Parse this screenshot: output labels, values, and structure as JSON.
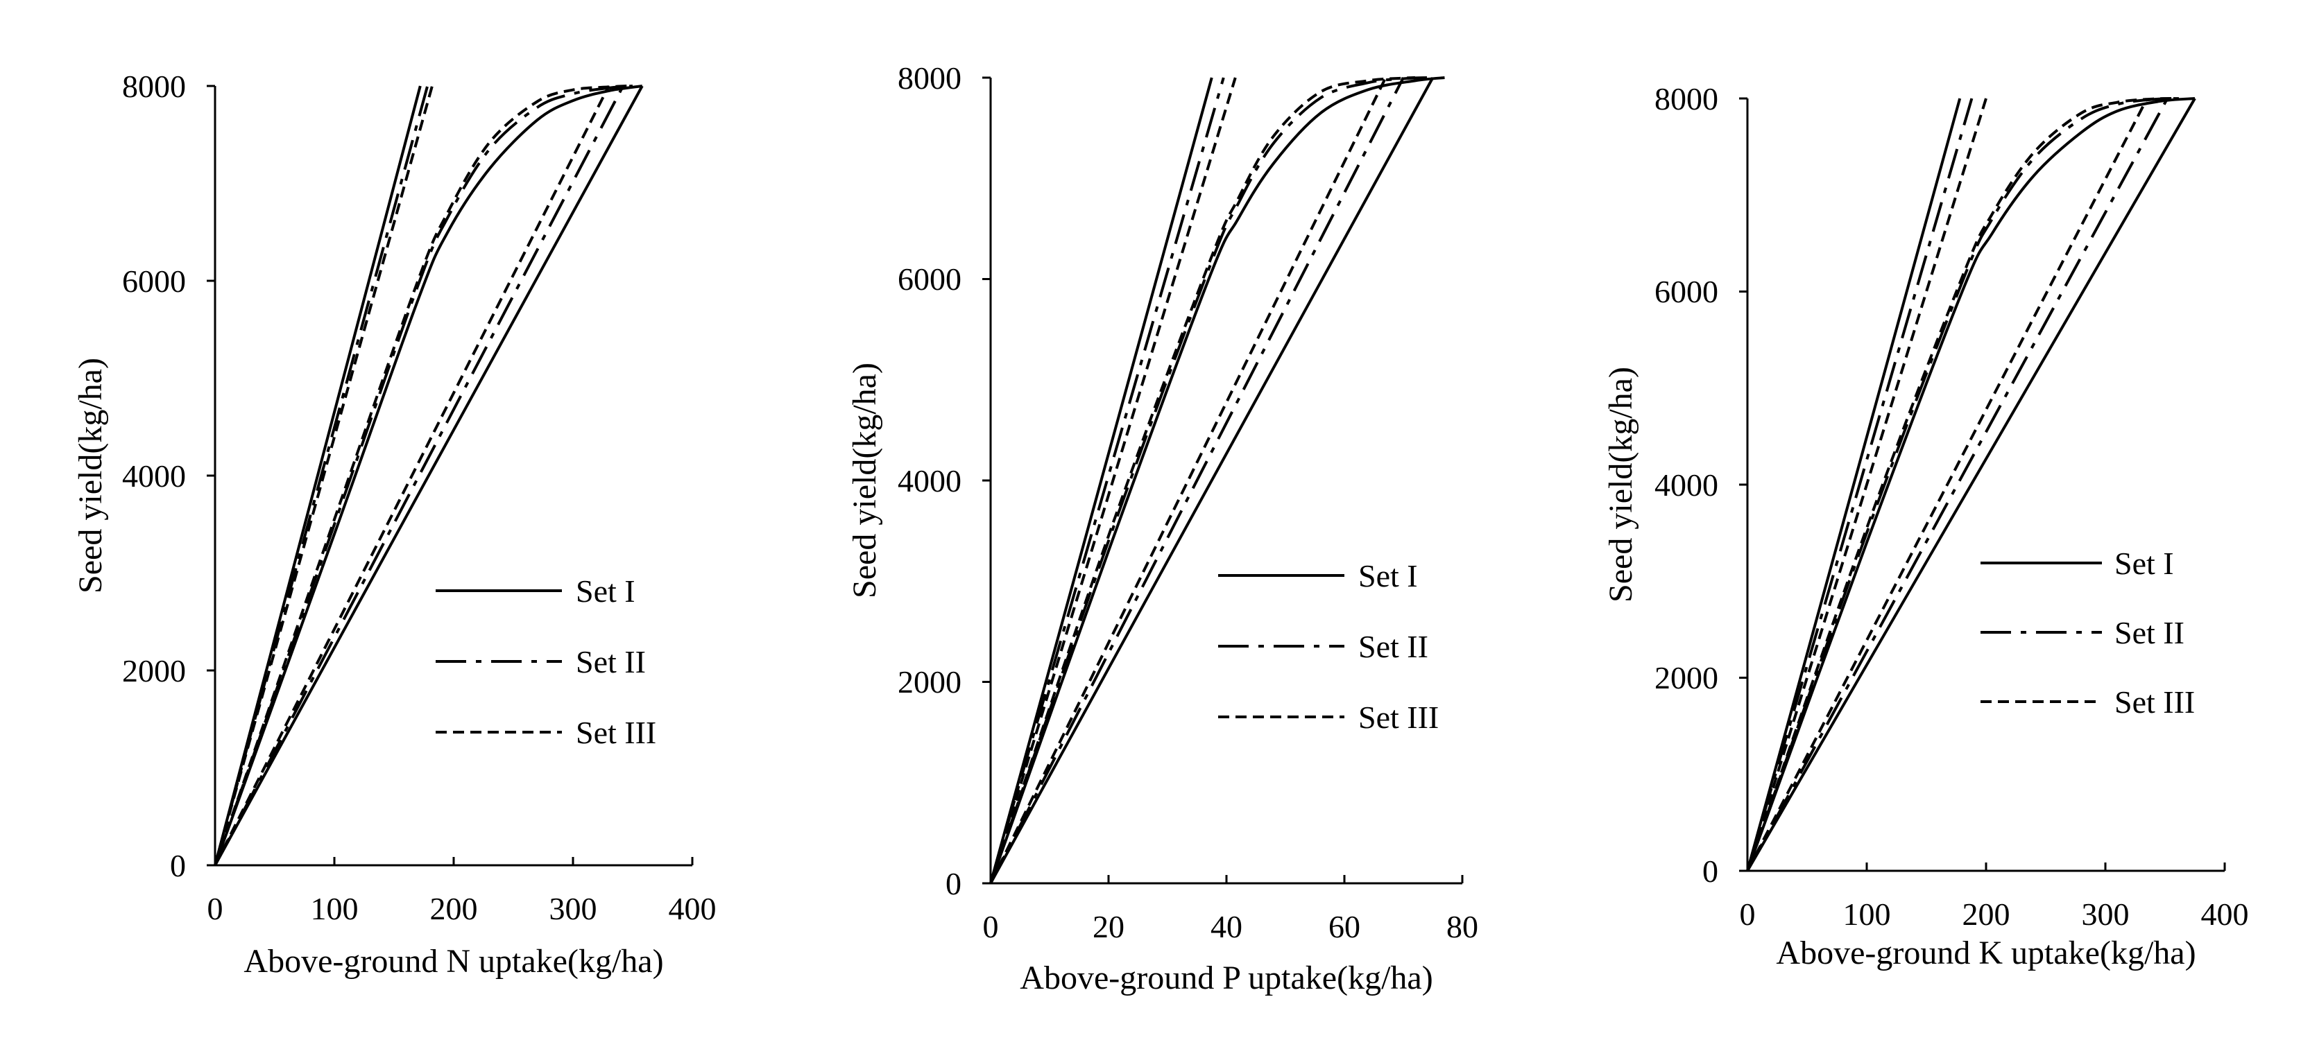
{
  "chart_data": [
    {
      "type": "line",
      "xlabel": "Above-ground N uptake(kg/ha)",
      "ylabel": "Seed yield(kg/ha)",
      "xlim": [
        0,
        400
      ],
      "ylim": [
        0,
        8000
      ],
      "xticks": [
        "0",
        "100",
        "200",
        "300",
        "400"
      ],
      "yticks": [
        "0",
        "2000",
        "4000",
        "6000",
        "8000"
      ],
      "legend": [
        "Set I",
        "Set II",
        "Set III"
      ],
      "series": [
        {
          "name": "Set I",
          "style": "solid",
          "groups": [
            {
              "role": "min",
              "x": [
                0,
                172
              ],
              "y": [
                0,
                8000
              ]
            },
            {
              "role": "balanced",
              "x": [
                0,
                100,
                170,
                195,
                230,
                270,
                300,
                330,
                358
              ],
              "y": [
                0,
                3400,
                5800,
                6500,
                7150,
                7650,
                7850,
                7950,
                8000
              ]
            },
            {
              "role": "max",
              "x": [
                0,
                358
              ],
              "y": [
                0,
                8000
              ]
            }
          ]
        },
        {
          "name": "Set II",
          "style": "dashdot",
          "groups": [
            {
              "role": "min",
              "x": [
                0,
                178
              ],
              "y": [
                0,
                8000
              ]
            },
            {
              "role": "balanced",
              "x": [
                0,
                100,
                170,
                195,
                230,
                270,
                300,
                330,
                350
              ],
              "y": [
                0,
                3500,
                5950,
                6650,
                7350,
                7780,
                7920,
                7980,
                8000
              ]
            },
            {
              "role": "max",
              "x": [
                0,
                342
              ],
              "y": [
                0,
                8000
              ]
            }
          ]
        },
        {
          "name": "Set III",
          "style": "dashed",
          "groups": [
            {
              "role": "min",
              "x": [
                0,
                182
              ],
              "y": [
                0,
                8000
              ]
            },
            {
              "role": "balanced",
              "x": [
                0,
                100,
                170,
                195,
                230,
                270,
                300,
                330,
                345
              ],
              "y": [
                0,
                3550,
                6000,
                6700,
                7420,
                7840,
                7960,
                7990,
                8000
              ]
            },
            {
              "role": "max",
              "x": [
                0,
                330
              ],
              "y": [
                0,
                8000
              ]
            }
          ]
        }
      ]
    },
    {
      "type": "line",
      "xlabel": "Above-ground P uptake(kg/ha)",
      "ylabel": "Seed yield(kg/ha)",
      "xlim": [
        0,
        80
      ],
      "ylim": [
        0,
        8000
      ],
      "xticks": [
        "0",
        "20",
        "40",
        "60",
        "80"
      ],
      "yticks": [
        "0",
        "2000",
        "4000",
        "6000",
        "8000"
      ],
      "legend": [
        "Set I",
        "Set II",
        "Set III"
      ],
      "series": [
        {
          "name": "Set I",
          "style": "solid",
          "groups": [
            {
              "role": "min",
              "x": [
                0,
                37.5
              ],
              "y": [
                0,
                8000
              ]
            },
            {
              "role": "balanced",
              "x": [
                0,
                20,
                37,
                42,
                48,
                56,
                64,
                72,
                77
              ],
              "y": [
                0,
                3300,
                6000,
                6600,
                7150,
                7650,
                7880,
                7970,
                8000
              ]
            },
            {
              "role": "max",
              "x": [
                0,
                75
              ],
              "y": [
                0,
                8000
              ]
            }
          ]
        },
        {
          "name": "Set II",
          "style": "dashdot",
          "groups": [
            {
              "role": "min",
              "x": [
                0,
                39.5
              ],
              "y": [
                0,
                8000
              ]
            },
            {
              "role": "balanced",
              "x": [
                0,
                20,
                37,
                42,
                48,
                56,
                64,
                70,
                74
              ],
              "y": [
                0,
                3400,
                6100,
                6750,
                7350,
                7800,
                7950,
                7990,
                8000
              ]
            },
            {
              "role": "max",
              "x": [
                0,
                70
              ],
              "y": [
                0,
                8000
              ]
            }
          ]
        },
        {
          "name": "Set III",
          "style": "dashed",
          "groups": [
            {
              "role": "min",
              "x": [
                0,
                41.5
              ],
              "y": [
                0,
                8000
              ]
            },
            {
              "role": "balanced",
              "x": [
                0,
                20,
                37,
                42,
                48,
                56,
                64,
                70,
                72
              ],
              "y": [
                0,
                3450,
                6150,
                6800,
                7420,
                7860,
                7970,
                7995,
                8000
              ]
            },
            {
              "role": "max",
              "x": [
                0,
                67
              ],
              "y": [
                0,
                8000
              ]
            }
          ]
        }
      ]
    },
    {
      "type": "line",
      "xlabel": "Above-ground K uptake(kg/ha)",
      "ylabel": "Seed yield(kg/ha)",
      "xlim": [
        0,
        400
      ],
      "ylim": [
        0,
        8000
      ],
      "xticks": [
        "0",
        "100",
        "200",
        "300",
        "400"
      ],
      "yticks": [
        "0",
        "2000",
        "4000",
        "6000",
        "8000"
      ],
      "legend": [
        "Set I",
        "Set II",
        "Set III"
      ],
      "series": [
        {
          "name": "Set I",
          "style": "solid",
          "groups": [
            {
              "role": "min",
              "x": [
                0,
                178
              ],
              "y": [
                0,
                8000
              ]
            },
            {
              "role": "balanced",
              "x": [
                0,
                100,
                180,
                205,
                240,
                280,
                310,
                345,
                375
              ],
              "y": [
                0,
                3400,
                6000,
                6600,
                7200,
                7650,
                7870,
                7970,
                8000
              ]
            },
            {
              "role": "max",
              "x": [
                0,
                375
              ],
              "y": [
                0,
                8000
              ]
            }
          ]
        },
        {
          "name": "Set II",
          "style": "dashdot",
          "groups": [
            {
              "role": "min",
              "x": [
                0,
                188
              ],
              "y": [
                0,
                8000
              ]
            },
            {
              "role": "balanced",
              "x": [
                0,
                100,
                180,
                205,
                240,
                280,
                310,
                340,
                365
              ],
              "y": [
                0,
                3500,
                6100,
                6750,
                7380,
                7790,
                7940,
                7990,
                8000
              ]
            },
            {
              "role": "max",
              "x": [
                0,
                352
              ],
              "y": [
                0,
                8000
              ]
            }
          ]
        },
        {
          "name": "Set III",
          "style": "dashed",
          "groups": [
            {
              "role": "min",
              "x": [
                0,
                200
              ],
              "y": [
                0,
                8000
              ]
            },
            {
              "role": "balanced",
              "x": [
                0,
                100,
                180,
                205,
                240,
                280,
                310,
                340,
                360
              ],
              "y": [
                0,
                3550,
                6150,
                6800,
                7440,
                7850,
                7960,
                7995,
                8000
              ]
            },
            {
              "role": "max",
              "x": [
                0,
                335
              ],
              "y": [
                0,
                8000
              ]
            }
          ]
        }
      ]
    }
  ]
}
